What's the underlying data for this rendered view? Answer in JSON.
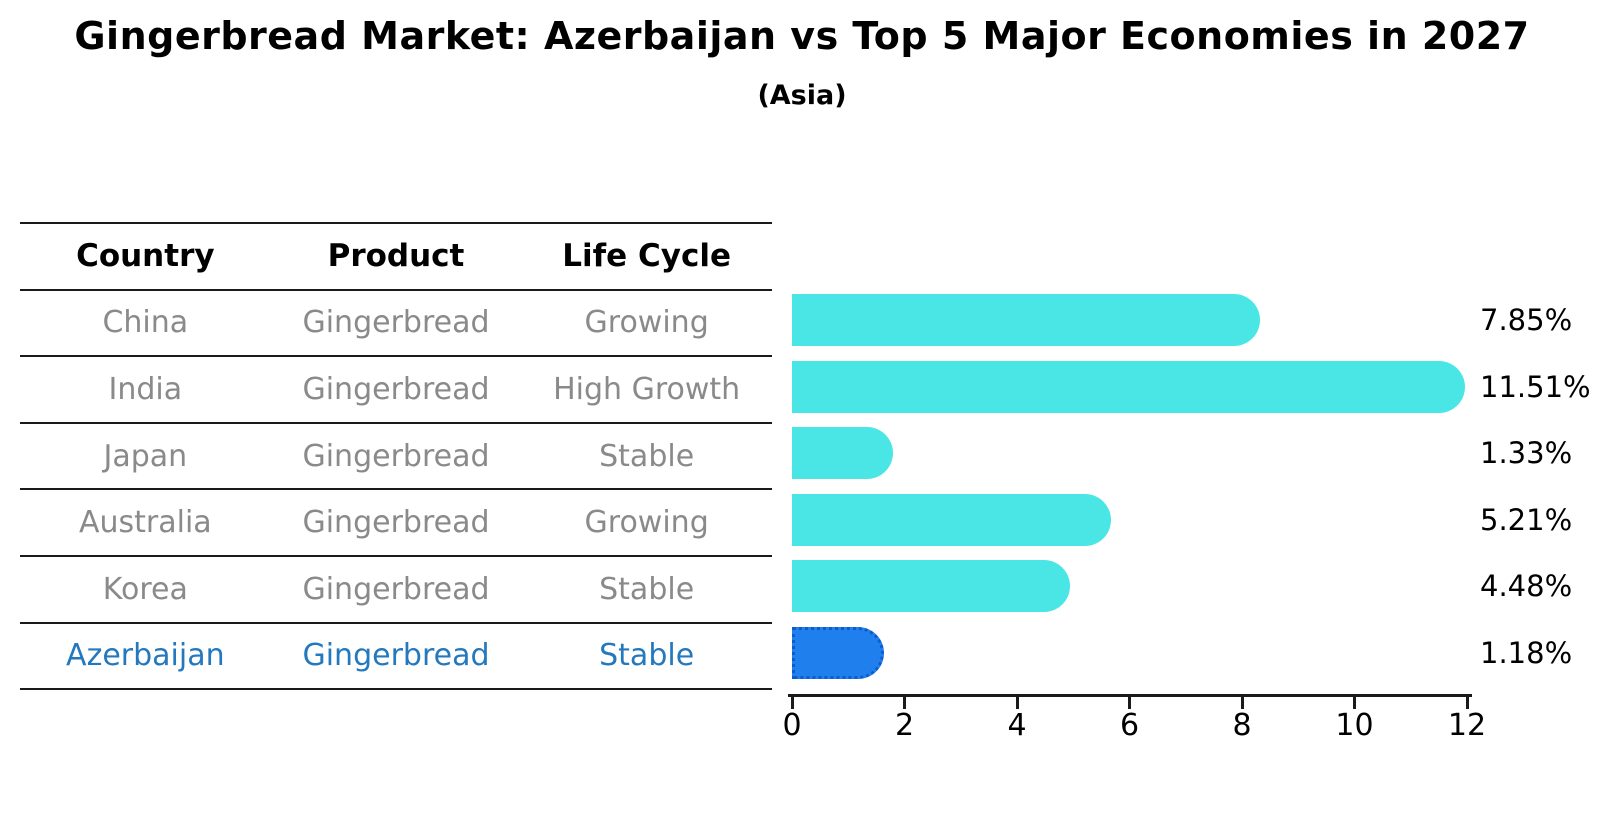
{
  "title": "Gingerbread Market: Azerbaijan vs Top 5 Major Economies in 2027",
  "subtitle": "(Asia)",
  "table": {
    "headers": [
      "Country",
      "Product",
      "Life Cycle"
    ],
    "rows": [
      {
        "country": "China",
        "product": "Gingerbread",
        "life_cycle": "Growing",
        "highlight": false
      },
      {
        "country": "India",
        "product": "Gingerbread",
        "life_cycle": "High Growth",
        "highlight": false
      },
      {
        "country": "Japan",
        "product": "Gingerbread",
        "life_cycle": "Stable",
        "highlight": false
      },
      {
        "country": "Australia",
        "product": "Gingerbread",
        "life_cycle": "Growing",
        "highlight": false
      },
      {
        "country": "Korea",
        "product": "Gingerbread",
        "life_cycle": "Stable",
        "highlight": false
      },
      {
        "country": "Azerbaijan",
        "product": "Gingerbread",
        "life_cycle": "Stable",
        "highlight": true
      }
    ]
  },
  "chart_data": {
    "type": "bar",
    "orientation": "horizontal",
    "title": "Gingerbread Market: Azerbaijan vs Top 5 Major Economies in 2027",
    "subtitle": "(Asia)",
    "categories": [
      "China",
      "India",
      "Japan",
      "Australia",
      "Korea",
      "Azerbaijan"
    ],
    "values": [
      7.85,
      11.51,
      1.33,
      5.21,
      4.48,
      1.18
    ],
    "value_labels": [
      "7.85%",
      "11.51%",
      "1.33%",
      "5.21%",
      "4.48%",
      "1.18%"
    ],
    "xlim": [
      0,
      12
    ],
    "xticks": [
      0,
      2,
      4,
      6,
      8,
      10,
      12
    ],
    "grid": false,
    "legend": false,
    "highlight_index": 5
  },
  "colors": {
    "bar": "#4AE6E6",
    "highlight_bar": "#1F7FEC",
    "highlight_border": "#0D5BD0",
    "highlight_text": "#2479BE",
    "row_text": "#8a8a8a",
    "header_text": "#000000",
    "axis": "#1a1a1a"
  }
}
